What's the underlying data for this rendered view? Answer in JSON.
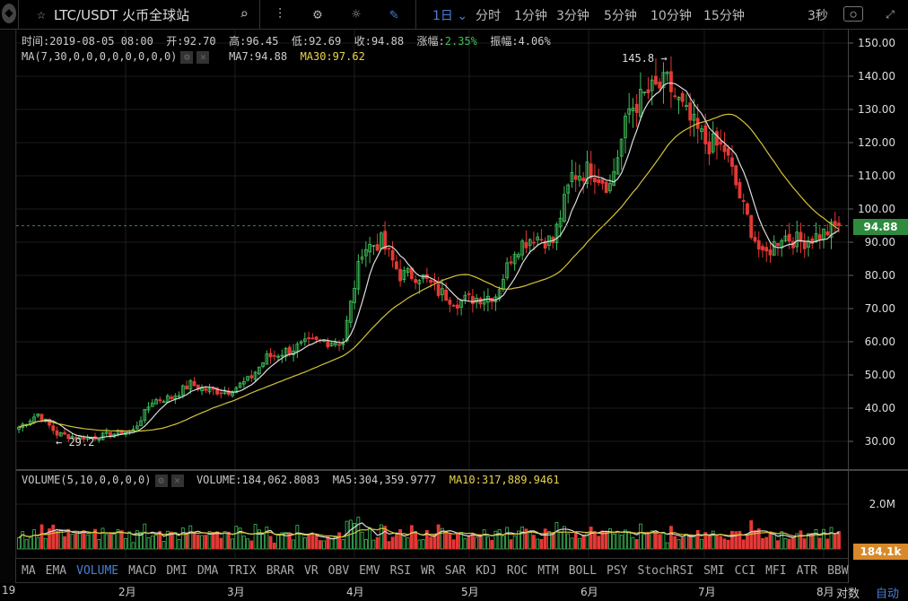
{
  "header": {
    "symbol": "LTC/USDT 火币全球站",
    "interval": "1日",
    "timeframes": [
      "分时",
      "1分钟",
      "3分钟",
      "5分钟",
      "10分钟",
      "15分钟"
    ],
    "refresh": "3秒",
    "icons": [
      "star-icon",
      "search-icon",
      "indicator-icon",
      "gear-icon",
      "theme-sun-icon",
      "draw-pencil-icon",
      "camera-icon",
      "fullscreen-icon"
    ]
  },
  "ohlc": {
    "time": "时间:2019-08-05 08:00",
    "open": "开:92.70",
    "high": "高:96.45",
    "low": "低:92.69",
    "close": "收:94.88",
    "change_label": "涨幅:",
    "change": "2.35%",
    "amp": "振幅:4.06%"
  },
  "ma": {
    "label": "MA(7,30,0,0,0,0,0,0,0,0)",
    "ma7": "MA7:94.88",
    "ma30": "MA30:97.62"
  },
  "volume": {
    "label": "VOLUME(5,10,0,0,0,0)",
    "volume": "VOLUME:184,062.8083",
    "ma5": "MA5:304,359.9777",
    "ma10": "MA10:317,889.9461",
    "axis": "2.0M",
    "current": "184.1k"
  },
  "price_axis": [
    "150.00",
    "140.00",
    "130.00",
    "120.00",
    "110.00",
    "100.00",
    "90.00",
    "80.00",
    "70.00",
    "60.00",
    "50.00",
    "40.00",
    "30.00"
  ],
  "current_price": "94.88",
  "annotations": {
    "high": "145.8 →",
    "low": "← 29.2"
  },
  "indicators": [
    "MA",
    "EMA",
    "VOLUME",
    "MACD",
    "DMI",
    "DMA",
    "TRIX",
    "BRAR",
    "VR",
    "OBV",
    "EMV",
    "RSI",
    "WR",
    "SAR",
    "KDJ",
    "ROC",
    "MTM",
    "BOLL",
    "PSY",
    "StochRSI",
    "SMI",
    "CCI",
    "MFI",
    "ATR",
    "BBW"
  ],
  "active_indicator": "VOLUME",
  "dates": [
    "19",
    "2月",
    "3月",
    "4月",
    "5月",
    "6月",
    "7月",
    "8月"
  ],
  "scale": {
    "log": "对数",
    "auto": "自动"
  },
  "colors": {
    "up": "#3fbf5a",
    "down": "#e53935",
    "ma7": "#dddddd",
    "ma30": "#d4c23a",
    "accent": "#4a7fd8",
    "price_tag": "#2e8b3e",
    "volume_tag": "#d88a2a"
  },
  "chart_data": {
    "type": "candlestick",
    "y_range": [
      20,
      155
    ],
    "weekly_closes": [
      34,
      38,
      32,
      31,
      31,
      32,
      33,
      42,
      43,
      47,
      45,
      45,
      48,
      55,
      57,
      59,
      60,
      60,
      88,
      90,
      80,
      80,
      75,
      72,
      73,
      74,
      88,
      92,
      90,
      110,
      112,
      107,
      130,
      135,
      138,
      128,
      120,
      118,
      100,
      85,
      92,
      90,
      92,
      94.88
    ],
    "high": 145.8,
    "low": 29.2
  }
}
